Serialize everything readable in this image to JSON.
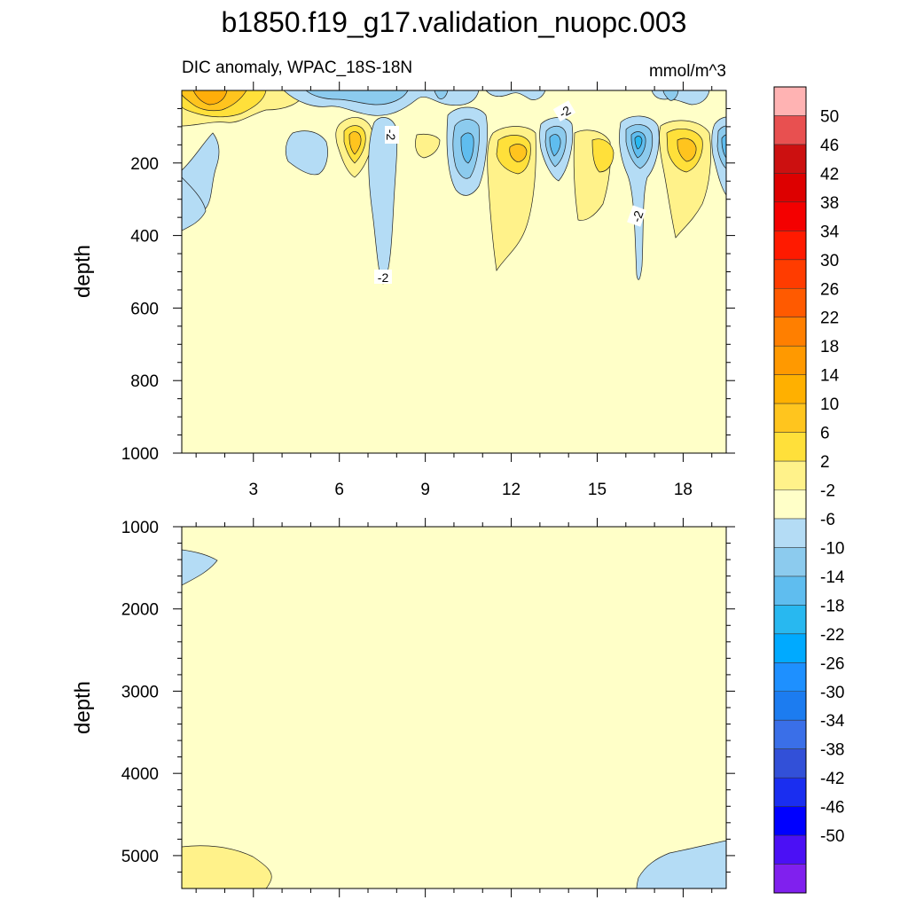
{
  "chart_data": {
    "type": "contour",
    "title": "b1850.f19_g17.validation_nuopc.003",
    "subtitle_left": "DIC anomaly, WPAC_18S-18N",
    "subtitle_right": "mmol/m^3",
    "colors": {
      "background": "#FFFFC8",
      "pos_2_6": "#FFF28A",
      "pos_6_10": "#FFE03A",
      "pos_10_14": "#FFC41E",
      "pos_14_18": "#FFAE0A",
      "neg_2_6": "#B4DCF5",
      "neg_6_10": "#8CCBEE",
      "neg_10_14": "#5FBDEF",
      "neg_14_18": "#28B8F0"
    },
    "panels": [
      {
        "ylabel": "depth",
        "ylim": [
          1000,
          0
        ],
        "yticks": [
          "200",
          "400",
          "600",
          "800",
          "1000"
        ],
        "xticks": [
          "3",
          "6",
          "9",
          "12",
          "15",
          "18"
        ],
        "contour_labels": [
          "-2",
          "-2",
          "-2",
          "-2"
        ]
      },
      {
        "ylabel": "depth",
        "ylim": [
          5400,
          1000
        ],
        "yticks": [
          "1000",
          "2000",
          "3000",
          "4000",
          "5000"
        ]
      }
    ],
    "colorbar": {
      "levels": [
        "50",
        "46",
        "42",
        "38",
        "34",
        "30",
        "26",
        "22",
        "18",
        "14",
        "10",
        "6",
        "2",
        "-2",
        "-6",
        "-10",
        "-14",
        "-18",
        "-22",
        "-26",
        "-30",
        "-34",
        "-38",
        "-42",
        "-46",
        "-50"
      ],
      "colors": [
        "#FFB3B3",
        "#E85050",
        "#CC1010",
        "#DD0000",
        "#F40000",
        "#FF1A00",
        "#FF3C00",
        "#FF5A00",
        "#FF7F00",
        "#FF9900",
        "#FFB000",
        "#FFC51E",
        "#FFE03A",
        "#FFF28A",
        "#FFFFC8",
        "#B4DCF5",
        "#8CCBEE",
        "#5FBDEF",
        "#28B8F0",
        "#00AAFF",
        "#1E90FF",
        "#1C7CF0",
        "#3A6FE8",
        "#3250D8",
        "#1A2EF0",
        "#0000FF",
        "#4B10F5",
        "#8020EE"
      ]
    }
  }
}
